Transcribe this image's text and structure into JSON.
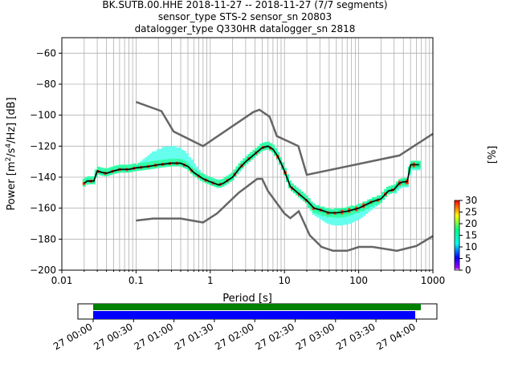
{
  "title_lines": [
    "BK.SUTB.00.HHE   2018-11-27 -- 2018-11-27  (7/7 segments)",
    "sensor_type STS-2 sensor_sn 20803",
    "datalogger_type Q330HR datalogger_sn 2818"
  ],
  "chart_data": {
    "type": "line",
    "xlabel": "Period [s]",
    "ylabel_parts": {
      "pre": "Power [m",
      "sup1": "2",
      "mid": "/s",
      "sup2": "4",
      "post": "/Hz] [dB]"
    },
    "x_scale": "log",
    "xlim": [
      0.01,
      1000
    ],
    "ylim": [
      -200,
      -50
    ],
    "x_ticks": [
      0.01,
      0.1,
      1,
      10,
      100,
      1000
    ],
    "x_tick_labels": [
      "0.01",
      "0.1",
      "1",
      "10",
      "100",
      "1000"
    ],
    "y_ticks": [
      -200,
      -180,
      -160,
      -140,
      -120,
      -100,
      -80,
      -60
    ],
    "y_tick_labels": [
      "−200",
      "−180",
      "−160",
      "−140",
      "−120",
      "−100",
      "−80",
      "−60"
    ],
    "grid": true,
    "noise_models": [
      {
        "name": "high",
        "color": "#666666",
        "points": [
          [
            0.1,
            -91.5
          ],
          [
            0.22,
            -97.4
          ],
          [
            0.32,
            -110.5
          ],
          [
            0.8,
            -120
          ],
          [
            3.8,
            -98
          ],
          [
            4.6,
            -96.5
          ],
          [
            6.3,
            -101
          ],
          [
            7.9,
            -113.5
          ],
          [
            15.4,
            -120
          ],
          [
            20,
            -138.5
          ],
          [
            354.8,
            -126
          ],
          [
            1000,
            -112
          ]
        ]
      },
      {
        "name": "low",
        "color": "#666666",
        "points": [
          [
            0.1,
            -168
          ],
          [
            0.17,
            -166.7
          ],
          [
            0.4,
            -166.7
          ],
          [
            0.8,
            -169.2
          ],
          [
            1.24,
            -163.4
          ],
          [
            2.4,
            -150.2
          ],
          [
            4.3,
            -141.1
          ],
          [
            5,
            -141.1
          ],
          [
            6,
            -149
          ],
          [
            10,
            -163.5
          ],
          [
            12,
            -166.5
          ],
          [
            15.6,
            -162
          ],
          [
            21.9,
            -177.5
          ],
          [
            31.6,
            -185
          ],
          [
            45,
            -187.5
          ],
          [
            70,
            -187.5
          ],
          [
            101,
            -185
          ],
          [
            154,
            -185
          ],
          [
            328,
            -187.5
          ],
          [
            600,
            -184.4
          ],
          [
            1000,
            -178
          ]
        ]
      }
    ],
    "mode_curve": {
      "color": "#000000",
      "points": [
        [
          0.02,
          -144
        ],
        [
          0.022,
          -142.5
        ],
        [
          0.027,
          -142.5
        ],
        [
          0.03,
          -136
        ],
        [
          0.035,
          -137
        ],
        [
          0.04,
          -137.5
        ],
        [
          0.05,
          -136
        ],
        [
          0.06,
          -135
        ],
        [
          0.08,
          -135
        ],
        [
          0.1,
          -134
        ],
        [
          0.15,
          -133
        ],
        [
          0.2,
          -132
        ],
        [
          0.3,
          -131
        ],
        [
          0.4,
          -131
        ],
        [
          0.5,
          -133
        ],
        [
          0.6,
          -137
        ],
        [
          0.8,
          -141
        ],
        [
          1.0,
          -143
        ],
        [
          1.3,
          -145
        ],
        [
          1.5,
          -144
        ],
        [
          2.0,
          -140
        ],
        [
          2.5,
          -134
        ],
        [
          3.0,
          -130
        ],
        [
          4.0,
          -125
        ],
        [
          5.0,
          -121
        ],
        [
          6.0,
          -120
        ],
        [
          7.0,
          -122
        ],
        [
          8.0,
          -126
        ],
        [
          9.0,
          -131
        ],
        [
          10,
          -136
        ],
        [
          12,
          -146
        ],
        [
          15,
          -150
        ],
        [
          20,
          -155
        ],
        [
          25,
          -160
        ],
        [
          30,
          -161
        ],
        [
          40,
          -163
        ],
        [
          50,
          -163
        ],
        [
          70,
          -162
        ],
        [
          100,
          -160
        ],
        [
          150,
          -156
        ],
        [
          200,
          -154
        ],
        [
          250,
          -149
        ],
        [
          300,
          -148
        ],
        [
          350,
          -144
        ],
        [
          400,
          -143
        ],
        [
          450,
          -143
        ],
        [
          500,
          -132
        ],
        [
          550,
          -132
        ],
        [
          650,
          -132
        ]
      ]
    },
    "colorbar": {
      "label": "[%]",
      "ticks": [
        0,
        5,
        10,
        15,
        20,
        25,
        30
      ],
      "range": [
        0,
        30
      ]
    },
    "timeline": {
      "tick_labels": [
        "27 00:00",
        "27 00:30",
        "27 01:00",
        "27 01:30",
        "27 02:00",
        "27 02:30",
        "27 03:00",
        "27 03:30",
        "27 04:00"
      ],
      "green_bar_color": "#008000",
      "blue_bar_color": "#0000ff"
    }
  }
}
